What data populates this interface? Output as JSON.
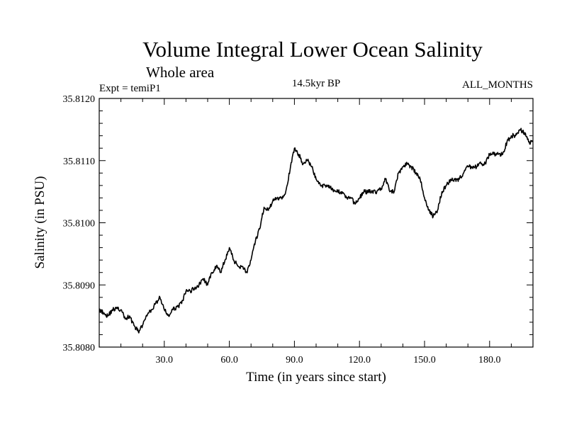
{
  "chart_data": {
    "type": "line",
    "title": "Volume Integral Lower Ocean Salinity",
    "subtitle": "Whole area",
    "experiment": "Expt = temiP1",
    "period": "14.5kyr BP",
    "season": "ALL_MONTHS",
    "xlabel": "Time (in years since start)",
    "ylabel": "Salinity (in PSU)",
    "xlim": [
      0,
      200
    ],
    "ylim": [
      35.808,
      35.812
    ],
    "xticks": [
      30,
      60,
      90,
      120,
      150,
      180
    ],
    "xtick_labels": [
      "30.0",
      "60.0",
      "90.0",
      "120.0",
      "150.0",
      "180.0"
    ],
    "yticks": [
      35.808,
      35.809,
      35.81,
      35.811,
      35.812
    ],
    "ytick_labels": [
      "35.8080",
      "35.8090",
      "35.8100",
      "35.8110",
      "35.8120"
    ],
    "grid": false,
    "series": [
      {
        "name": "salinity",
        "color": "#000000",
        "x": [
          0,
          2,
          4,
          6,
          8,
          10,
          12,
          14,
          16,
          18,
          20,
          22,
          24,
          26,
          28,
          30,
          32,
          34,
          36,
          38,
          40,
          42,
          44,
          46,
          48,
          50,
          52,
          54,
          56,
          58,
          60,
          62,
          64,
          66,
          68,
          70,
          72,
          74,
          76,
          78,
          80,
          82,
          84,
          86,
          88,
          90,
          92,
          94,
          96,
          98,
          100,
          102,
          104,
          106,
          108,
          110,
          112,
          114,
          116,
          118,
          120,
          122,
          124,
          126,
          128,
          130,
          132,
          134,
          136,
          138,
          140,
          142,
          144,
          146,
          148,
          150,
          152,
          154,
          156,
          158,
          160,
          162,
          164,
          166,
          168,
          170,
          172,
          174,
          176,
          178,
          180,
          182,
          184,
          186,
          188,
          190,
          192,
          194,
          196,
          198,
          200
        ],
        "values": [
          35.8086,
          35.80855,
          35.8085,
          35.8086,
          35.80862,
          35.8086,
          35.80845,
          35.8085,
          35.80835,
          35.80825,
          35.80835,
          35.8085,
          35.8086,
          35.8087,
          35.8088,
          35.8086,
          35.8085,
          35.8086,
          35.80865,
          35.8087,
          35.8089,
          35.8089,
          35.80895,
          35.809,
          35.8091,
          35.809,
          35.8092,
          35.8093,
          35.8092,
          35.8094,
          35.8096,
          35.8094,
          35.8093,
          35.8093,
          35.8092,
          35.8094,
          35.8097,
          35.8099,
          35.81025,
          35.8102,
          35.81035,
          35.8104,
          35.8104,
          35.8105,
          35.81085,
          35.8112,
          35.8111,
          35.81095,
          35.811,
          35.8109,
          35.8107,
          35.8106,
          35.8106,
          35.8106,
          35.8105,
          35.8105,
          35.8105,
          35.8104,
          35.8104,
          35.8103,
          35.8104,
          35.8105,
          35.8105,
          35.8105,
          35.8105,
          35.81055,
          35.8107,
          35.8105,
          35.8105,
          35.8108,
          35.8109,
          35.81095,
          35.8109,
          35.8108,
          35.8107,
          35.8104,
          35.8102,
          35.8101,
          35.8102,
          35.8105,
          35.8106,
          35.8107,
          35.8107,
          35.8107,
          35.8108,
          35.8109,
          35.8109,
          35.8109,
          35.81095,
          35.81095,
          35.8111,
          35.8111,
          35.8111,
          35.8111,
          35.8113,
          35.8114,
          35.8114,
          35.8115,
          35.81145,
          35.8113,
          35.8113
        ]
      }
    ]
  }
}
